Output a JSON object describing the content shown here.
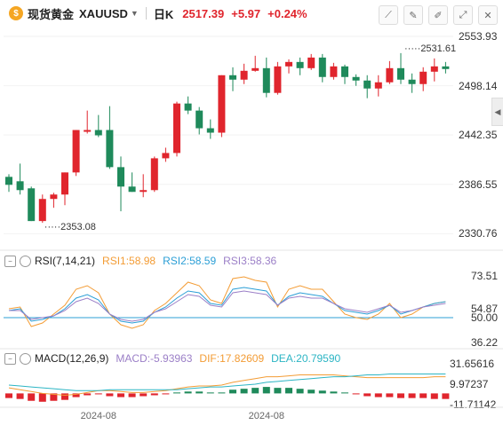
{
  "header": {
    "instrument_name": "现货黄金",
    "symbol": "XAUUSD",
    "period": "日K",
    "last_price": "2517.39",
    "change": "+5.97",
    "change_pct": "+0.24%",
    "logo_icon": "gold-coin-icon",
    "dropdown_icon": "chevron-down-icon",
    "tools": [
      "draw-line-icon",
      "brush-icon",
      "pen-icon",
      "fullscreen-icon",
      "close-icon"
    ]
  },
  "colors": {
    "up": "#e0252d",
    "down": "#1f8a5b",
    "rsi1": "#f39c35",
    "rsi2": "#2c9fd6",
    "rsi3": "#9b7fc7",
    "dif": "#f39c35",
    "dea": "#2cb5c4"
  },
  "chart_data": [
    {
      "type": "candlestick",
      "ylim": [
        2312,
        2565
      ],
      "y_ticks": [
        "2553.93",
        "2498.14",
        "2442.35",
        "2386.55",
        "2330.76"
      ],
      "annotations": [
        {
          "label": "2531.61"
        },
        {
          "label": "2353.08"
        }
      ],
      "candles": [
        [
          2395,
          2398,
          2378,
          2386
        ],
        [
          2390,
          2410,
          2375,
          2380
        ],
        [
          2382,
          2384,
          2345,
          2345
        ],
        [
          2345,
          2375,
          2343,
          2370
        ],
        [
          2370,
          2377,
          2360,
          2375
        ],
        [
          2375,
          2400,
          2363,
          2400
        ],
        [
          2400,
          2448,
          2396,
          2448
        ],
        [
          2446,
          2470,
          2444,
          2448
        ],
        [
          2448,
          2465,
          2440,
          2442
        ],
        [
          2448,
          2475,
          2404,
          2406
        ],
        [
          2406,
          2418,
          2356,
          2384
        ],
        [
          2384,
          2400,
          2378,
          2378
        ],
        [
          2378,
          2398,
          2372,
          2380
        ],
        [
          2380,
          2418,
          2378,
          2416
        ],
        [
          2416,
          2428,
          2412,
          2422
        ],
        [
          2422,
          2480,
          2418,
          2478
        ],
        [
          2478,
          2486,
          2466,
          2470
        ],
        [
          2470,
          2474,
          2443,
          2450
        ],
        [
          2450,
          2460,
          2438,
          2445
        ],
        [
          2445,
          2510,
          2440,
          2510
        ],
        [
          2510,
          2519,
          2492,
          2505
        ],
        [
          2505,
          2523,
          2500,
          2515
        ],
        [
          2515,
          2532,
          2514,
          2518
        ],
        [
          2518,
          2530,
          2485,
          2490
        ],
        [
          2490,
          2525,
          2488,
          2520
        ],
        [
          2520,
          2528,
          2512,
          2525
        ],
        [
          2525,
          2530,
          2510,
          2518
        ],
        [
          2518,
          2534,
          2516,
          2530
        ],
        [
          2530,
          2534,
          2502,
          2508
        ],
        [
          2508,
          2524,
          2505,
          2520
        ],
        [
          2520,
          2522,
          2500,
          2508
        ],
        [
          2508,
          2511,
          2498,
          2504
        ],
        [
          2504,
          2510,
          2484,
          2495
        ],
        [
          2495,
          2510,
          2486,
          2502
        ],
        [
          2502,
          2526,
          2500,
          2518
        ],
        [
          2518,
          2535,
          2500,
          2505
        ],
        [
          2505,
          2512,
          2490,
          2500
        ],
        [
          2500,
          2519,
          2492,
          2514
        ],
        [
          2514,
          2529,
          2503,
          2520
        ],
        [
          2520,
          2525,
          2512,
          2517
        ]
      ]
    },
    {
      "type": "line",
      "title": "RSI(7,14,21)",
      "ylim": [
        33,
        78
      ],
      "y_ticks": [
        "73.51",
        "54.87",
        "50.00",
        "36.22"
      ],
      "series": [
        {
          "name": "RSI1",
          "label": "RSI1:58.98",
          "values": [
            55,
            56,
            45,
            47,
            52,
            57,
            66,
            68,
            64,
            52,
            46,
            44,
            46,
            54,
            58,
            64,
            70,
            68,
            60,
            58,
            72,
            73,
            71,
            70,
            56,
            66,
            68,
            66,
            66,
            59,
            52,
            50,
            49,
            52,
            58,
            50,
            52,
            56,
            58,
            59
          ]
        },
        {
          "name": "RSI2",
          "label": "RSI2:58.59",
          "values": [
            54,
            55,
            48,
            49,
            51,
            55,
            61,
            63,
            60,
            52,
            48,
            47,
            48,
            53,
            56,
            61,
            65,
            64,
            58,
            57,
            66,
            67,
            66,
            65,
            57,
            62,
            64,
            63,
            62,
            58,
            54,
            53,
            52,
            54,
            57,
            52,
            54,
            56,
            58,
            59
          ]
        },
        {
          "name": "RSI3",
          "label": "RSI3:58.36",
          "values": [
            54,
            54,
            49,
            50,
            51,
            54,
            59,
            61,
            58,
            52,
            49,
            48,
            49,
            53,
            55,
            59,
            63,
            62,
            57,
            56,
            64,
            65,
            64,
            63,
            57,
            61,
            62,
            61,
            61,
            58,
            55,
            54,
            53,
            55,
            57,
            53,
            54,
            56,
            57,
            58
          ]
        }
      ]
    },
    {
      "type": "bar+line",
      "title": "MACD(12,26,9)",
      "ylim": [
        -14,
        32
      ],
      "y_ticks": [
        "31.65616",
        "9.97237",
        "-11.71142"
      ],
      "x_ticks": [
        "2024-08",
        "2024-08"
      ],
      "series": [
        {
          "name": "MACD",
          "label": "MACD:-5.93963",
          "values": [
            -5,
            -6,
            -8,
            -9,
            -8,
            -7,
            -4,
            -2,
            -1,
            -3,
            -4,
            -4,
            -3,
            -2,
            -1,
            1,
            2,
            2,
            1,
            1,
            4,
            5,
            6,
            7,
            6,
            6,
            5,
            4,
            3,
            2,
            1,
            -1,
            -3,
            -4,
            -4,
            -5,
            -5,
            -5,
            -6,
            -6
          ]
        },
        {
          "name": "DIF",
          "label": "DIF:17.82609",
          "values": [
            6,
            4,
            2,
            0,
            -1,
            -2,
            -1,
            1,
            3,
            3,
            2,
            1,
            1,
            2,
            3,
            5,
            7,
            8,
            8,
            9,
            12,
            14,
            16,
            18,
            18,
            19,
            20,
            20,
            20,
            20,
            19,
            18,
            17,
            17,
            17,
            17,
            17,
            17,
            18,
            18
          ]
        },
        {
          "name": "DEA",
          "label": "DEA:20.79590",
          "values": [
            9,
            8,
            7,
            6,
            5,
            4,
            3,
            3,
            3,
            4,
            4,
            4,
            4,
            4,
            4,
            4,
            5,
            6,
            7,
            7,
            8,
            9,
            10,
            12,
            13,
            14,
            15,
            16,
            17,
            18,
            18,
            19,
            20,
            20,
            21,
            21,
            21,
            21,
            21,
            21
          ]
        }
      ]
    }
  ]
}
